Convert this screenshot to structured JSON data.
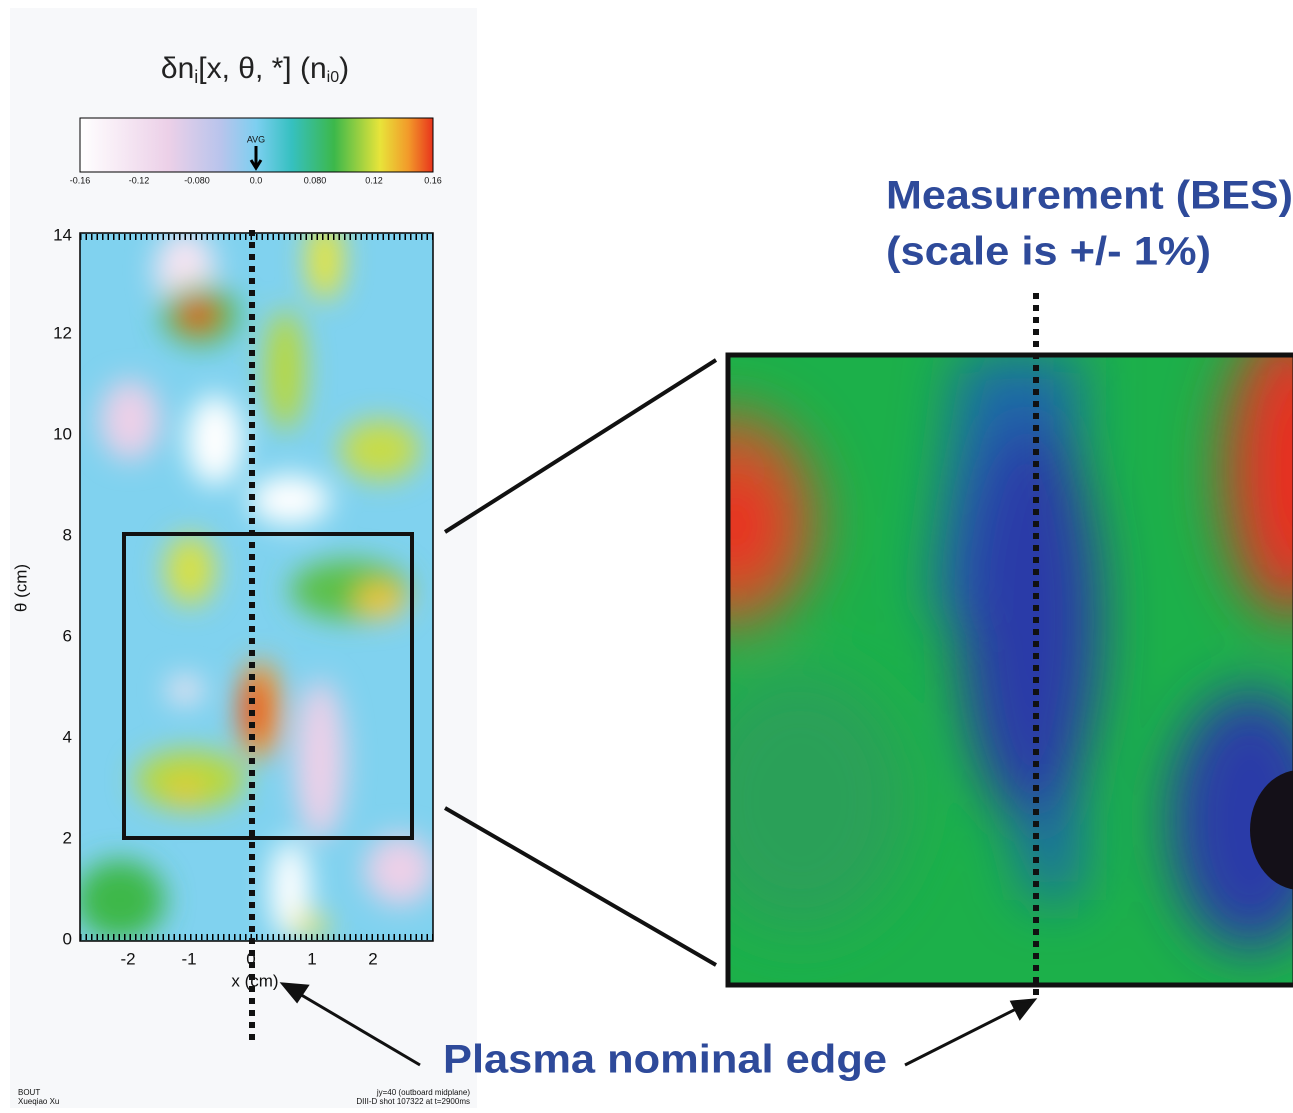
{
  "simulation": {
    "title": {
      "parts": [
        "δn",
        "i",
        "[x, θ, *] (n",
        "i0",
        ")"
      ]
    },
    "colorbar": {
      "ticks": [
        "-0.16",
        "-0.12",
        "-0.080",
        "0.0",
        "0.080",
        "0.12",
        "0.16"
      ],
      "marker": "AVG"
    },
    "y_axis": {
      "label": "θ (cm)",
      "ticks": [
        "0",
        "2",
        "4",
        "6",
        "8",
        "10",
        "12",
        "14"
      ]
    },
    "x_axis": {
      "label": "x (cm)",
      "ticks": [
        "-2",
        "-1",
        "0",
        "1",
        "2"
      ]
    },
    "footer_left": [
      "BOUT",
      "Xueqiao Xu"
    ],
    "footer_right": [
      "jy=40 (outboard midplane)",
      "DIII-D shot 107322 at t=2900ms"
    ]
  },
  "measurement": {
    "title": "Measurement (BES)",
    "subtitle": "(scale is +/- 1%)"
  },
  "annotation": "Plasma nominal edge"
}
